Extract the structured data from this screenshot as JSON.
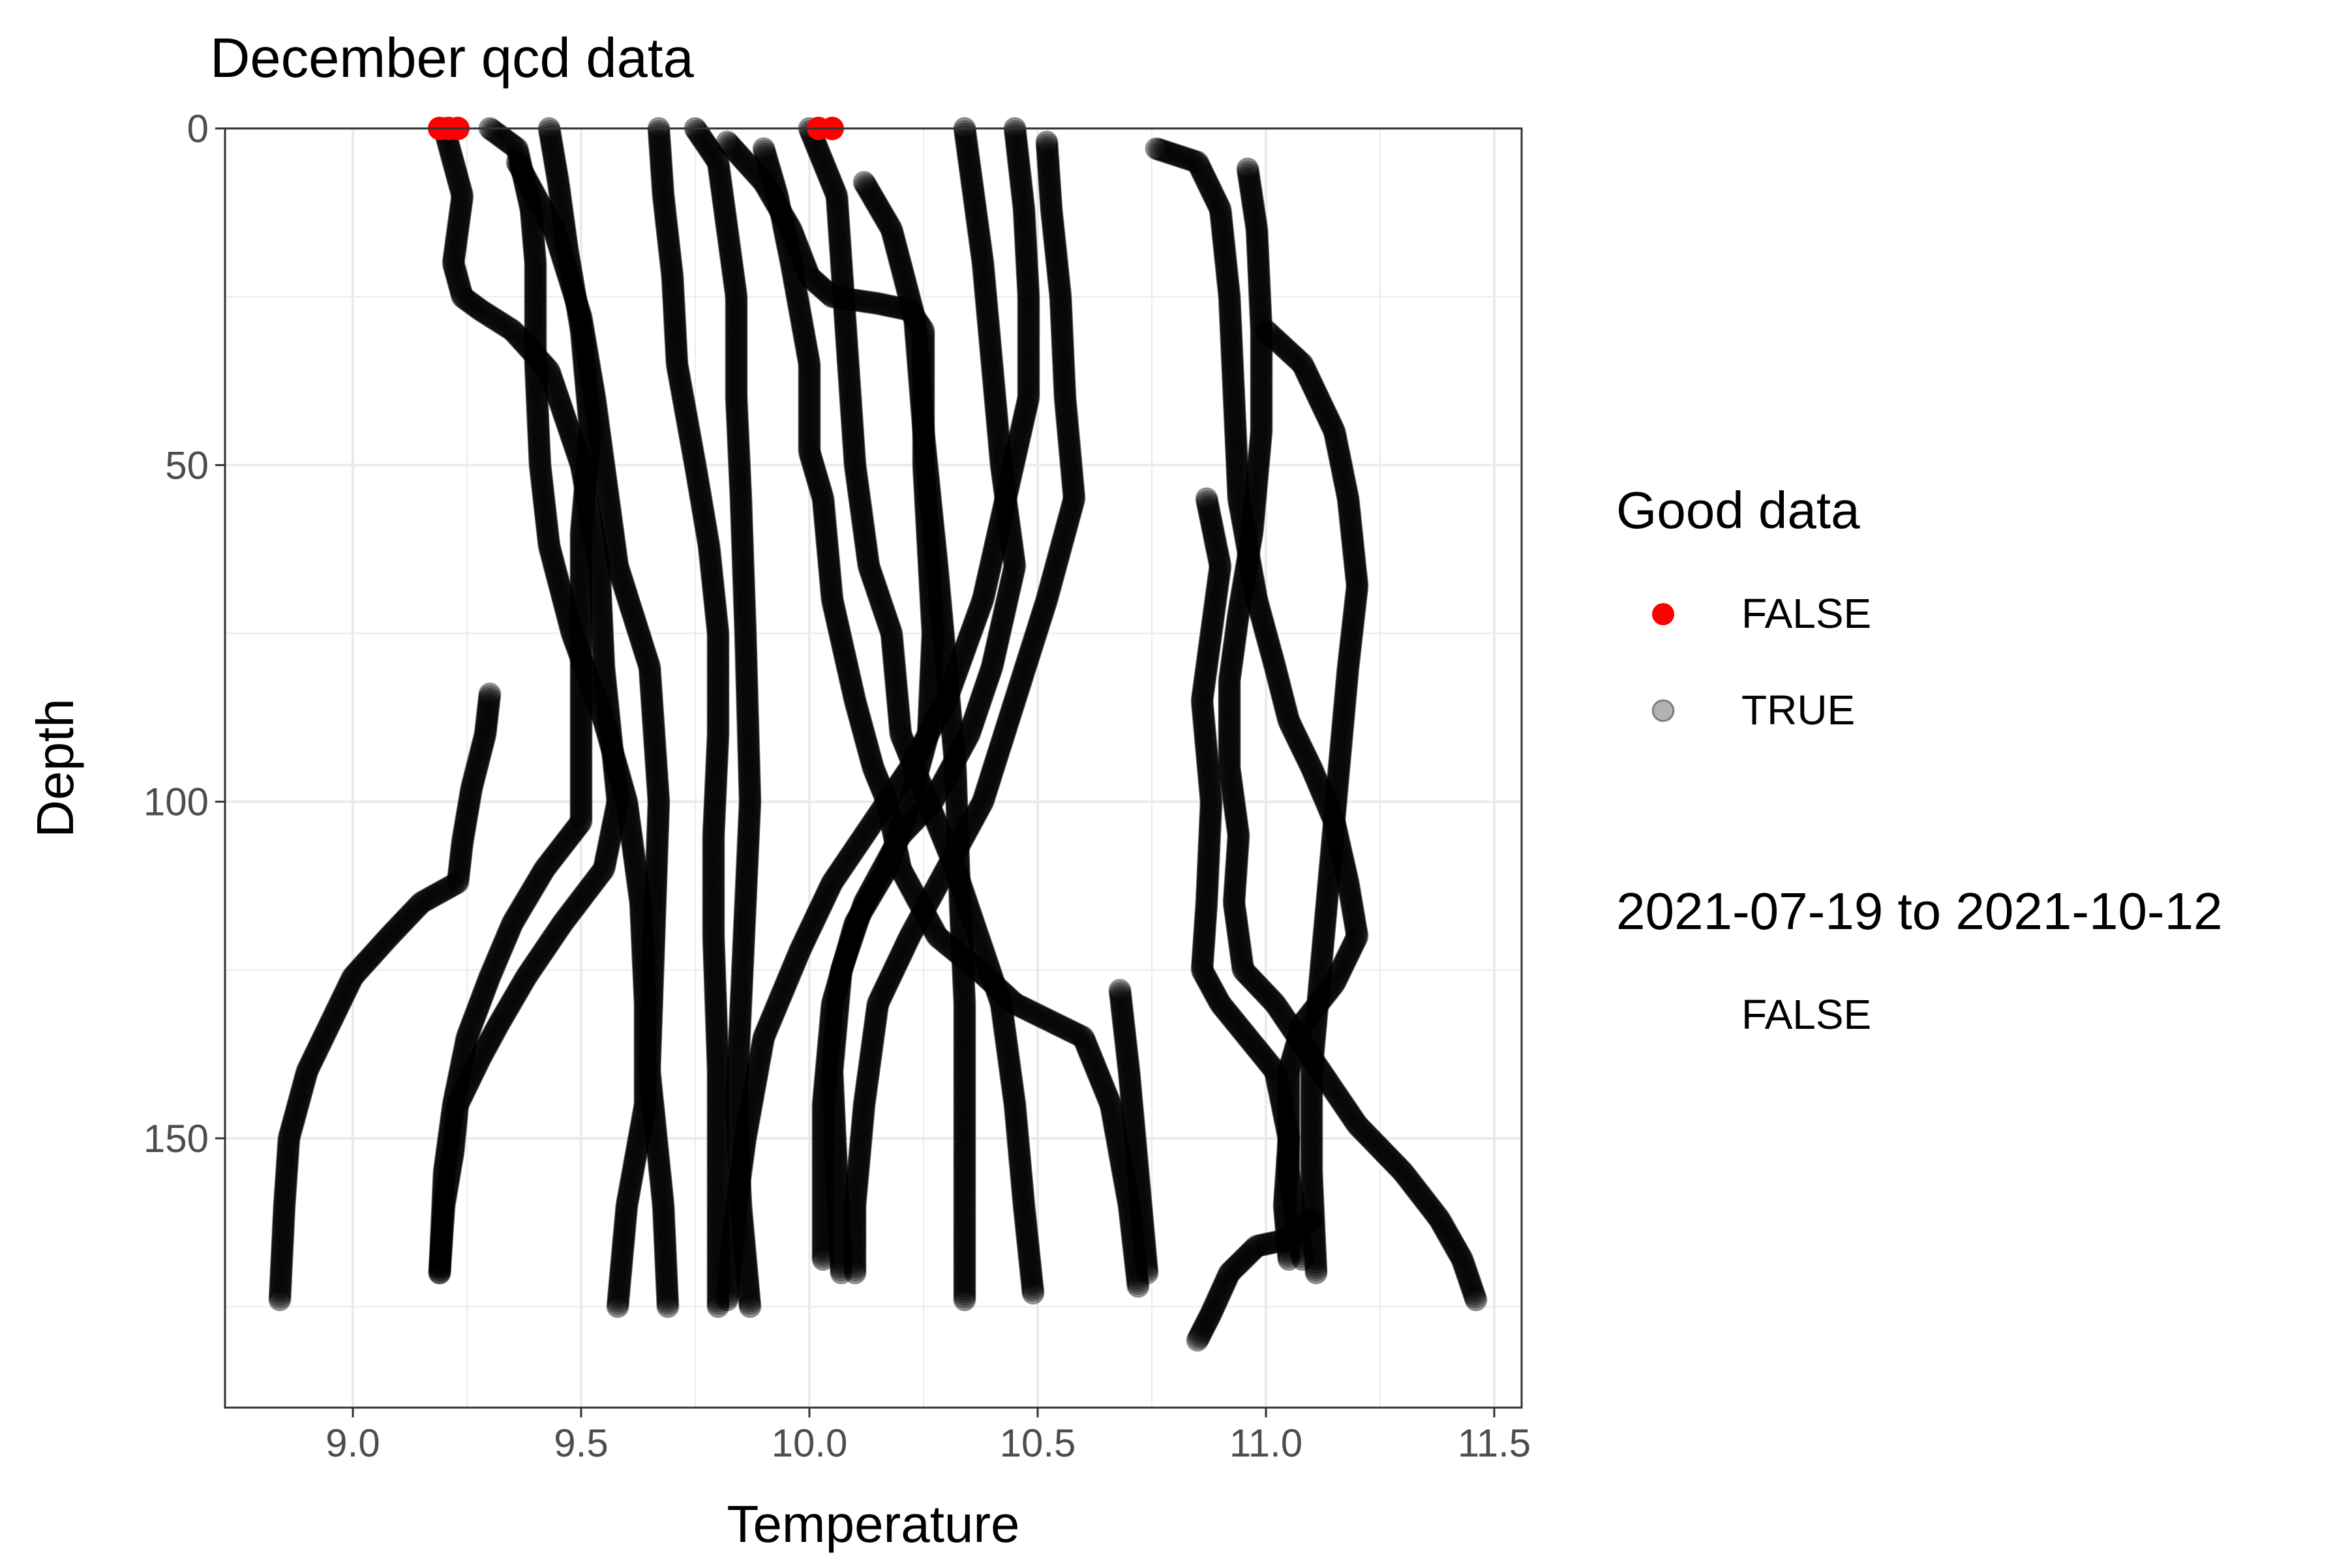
{
  "colors": {
    "good": "#000000",
    "bad": "#ff0000",
    "grid": "#ebebeb",
    "panel_border": "#333333",
    "tick_text": "#4d4d4d",
    "text": "#000000"
  },
  "chart_data": {
    "type": "scatter",
    "title": "December qcd data",
    "xlabel": "Temperature",
    "ylabel": "Depth",
    "xlim": [
      8.72,
      11.56
    ],
    "ylim": [
      0,
      190
    ],
    "y_reversed": true,
    "x_ticks": [
      9.0,
      9.5,
      10.0,
      10.5,
      11.0,
      11.5
    ],
    "x_tick_labels": [
      "9.0",
      "9.5",
      "10.0",
      "10.5",
      "11.0",
      "11.5"
    ],
    "y_ticks": [
      0,
      50,
      100,
      150
    ],
    "y_tick_labels": [
      "0",
      "50",
      "100",
      "150"
    ],
    "grid": true,
    "legend_position": "right",
    "legend": {
      "title": "Good data",
      "entries": [
        {
          "label": "FALSE",
          "key": "bad"
        },
        {
          "label": "TRUE",
          "key": "good"
        }
      ],
      "second_title": "2021-07-19 to 2021-10-12",
      "second_entries": [
        {
          "label": "FALSE"
        }
      ]
    },
    "series": [
      {
        "good": true,
        "points": [
          [
            9.2,
            0
          ],
          [
            9.22,
            5
          ],
          [
            9.24,
            10
          ],
          [
            9.22,
            20
          ],
          [
            9.24,
            25
          ],
          [
            9.28,
            27
          ],
          [
            9.35,
            30
          ],
          [
            9.43,
            36
          ],
          [
            9.46,
            42
          ],
          [
            9.5,
            50
          ],
          [
            9.54,
            65
          ],
          [
            9.55,
            80
          ],
          [
            9.58,
            100
          ],
          [
            9.55,
            110
          ],
          [
            9.46,
            118
          ],
          [
            9.38,
            126
          ],
          [
            9.32,
            133
          ],
          [
            9.28,
            138
          ],
          [
            9.23,
            145
          ],
          [
            9.22,
            152
          ],
          [
            9.2,
            160
          ],
          [
            9.19,
            170
          ]
        ]
      },
      {
        "good": true,
        "points": [
          [
            9.3,
            84
          ],
          [
            9.29,
            90
          ],
          [
            9.26,
            98
          ],
          [
            9.24,
            106
          ],
          [
            9.23,
            112
          ],
          [
            9.15,
            115
          ],
          [
            9.08,
            120
          ],
          [
            9.0,
            126
          ],
          [
            8.95,
            133
          ],
          [
            8.9,
            140
          ],
          [
            8.86,
            150
          ],
          [
            8.85,
            160
          ],
          [
            8.84,
            174
          ]
        ]
      },
      {
        "good": true,
        "points": [
          [
            9.3,
            0
          ],
          [
            9.36,
            3
          ],
          [
            9.39,
            12
          ],
          [
            9.4,
            20
          ],
          [
            9.4,
            35
          ],
          [
            9.41,
            50
          ],
          [
            9.43,
            62
          ],
          [
            9.48,
            75
          ],
          [
            9.55,
            88
          ],
          [
            9.6,
            100
          ],
          [
            9.63,
            115
          ],
          [
            9.64,
            130
          ],
          [
            9.64,
            145
          ],
          [
            9.6,
            160
          ],
          [
            9.58,
            175
          ]
        ]
      },
      {
        "good": true,
        "points": [
          [
            9.36,
            5
          ],
          [
            9.44,
            15
          ],
          [
            9.5,
            28
          ],
          [
            9.53,
            40
          ],
          [
            9.55,
            50
          ],
          [
            9.58,
            65
          ],
          [
            9.65,
            80
          ],
          [
            9.67,
            100
          ],
          [
            9.66,
            120
          ],
          [
            9.65,
            140
          ],
          [
            9.68,
            160
          ],
          [
            9.69,
            175
          ]
        ]
      },
      {
        "good": true,
        "points": [
          [
            9.43,
            0
          ],
          [
            9.45,
            8
          ],
          [
            9.47,
            18
          ],
          [
            9.5,
            30
          ],
          [
            9.52,
            45
          ],
          [
            9.5,
            60
          ],
          [
            9.5,
            75
          ],
          [
            9.5,
            90
          ],
          [
            9.5,
            103
          ],
          [
            9.42,
            110
          ],
          [
            9.35,
            118
          ],
          [
            9.3,
            126
          ],
          [
            9.25,
            135
          ],
          [
            9.22,
            145
          ],
          [
            9.2,
            155
          ],
          [
            9.19,
            170
          ]
        ]
      },
      {
        "good": true,
        "points": [
          [
            9.67,
            0
          ],
          [
            9.68,
            10
          ],
          [
            9.7,
            22
          ],
          [
            9.71,
            35
          ],
          [
            9.75,
            50
          ],
          [
            9.78,
            62
          ],
          [
            9.8,
            75
          ],
          [
            9.8,
            90
          ],
          [
            9.79,
            105
          ],
          [
            9.79,
            120
          ],
          [
            9.8,
            140
          ],
          [
            9.8,
            160
          ],
          [
            9.8,
            175
          ]
        ]
      },
      {
        "good": true,
        "points": [
          [
            9.75,
            0
          ],
          [
            9.8,
            5
          ],
          [
            9.82,
            15
          ],
          [
            9.84,
            25
          ],
          [
            9.84,
            40
          ],
          [
            9.85,
            55
          ],
          [
            9.86,
            75
          ],
          [
            9.87,
            100
          ],
          [
            9.86,
            115
          ],
          [
            9.85,
            130
          ],
          [
            9.84,
            145
          ],
          [
            9.85,
            160
          ],
          [
            9.87,
            175
          ]
        ]
      },
      {
        "good": true,
        "points": [
          [
            9.82,
            2
          ],
          [
            9.9,
            8
          ],
          [
            9.96,
            15
          ],
          [
            10.0,
            22
          ],
          [
            10.05,
            25
          ],
          [
            10.15,
            26
          ],
          [
            10.22,
            27
          ],
          [
            10.25,
            30
          ],
          [
            10.25,
            50
          ],
          [
            10.27,
            75
          ],
          [
            10.26,
            90
          ],
          [
            10.22,
            100
          ],
          [
            10.17,
            110
          ],
          [
            10.1,
            118
          ],
          [
            10.05,
            130
          ],
          [
            10.03,
            145
          ],
          [
            10.03,
            160
          ],
          [
            10.03,
            168
          ]
        ]
      },
      {
        "good": true,
        "points": [
          [
            9.9,
            3
          ],
          [
            9.93,
            10
          ],
          [
            9.96,
            20
          ],
          [
            10.0,
            35
          ],
          [
            10.0,
            48
          ],
          [
            10.03,
            55
          ],
          [
            10.05,
            70
          ],
          [
            10.1,
            85
          ],
          [
            10.14,
            95
          ],
          [
            10.17,
            100
          ],
          [
            10.2,
            110
          ],
          [
            10.28,
            120
          ],
          [
            10.37,
            125
          ],
          [
            10.45,
            130
          ],
          [
            10.6,
            135
          ],
          [
            10.66,
            145
          ],
          [
            10.7,
            160
          ],
          [
            10.72,
            172
          ]
        ]
      },
      {
        "good": true,
        "points": [
          [
            10.0,
            0
          ],
          [
            10.06,
            10
          ],
          [
            10.08,
            30
          ],
          [
            10.1,
            50
          ],
          [
            10.13,
            65
          ],
          [
            10.18,
            75
          ],
          [
            10.2,
            90
          ],
          [
            10.26,
            100
          ],
          [
            10.32,
            110
          ],
          [
            10.37,
            120
          ],
          [
            10.42,
            130
          ],
          [
            10.45,
            145
          ],
          [
            10.47,
            160
          ],
          [
            10.49,
            173
          ]
        ]
      },
      {
        "good": true,
        "points": [
          [
            10.12,
            8
          ],
          [
            10.18,
            15
          ],
          [
            10.23,
            28
          ],
          [
            10.25,
            45
          ],
          [
            10.28,
            65
          ],
          [
            10.3,
            80
          ],
          [
            10.32,
            95
          ],
          [
            10.33,
            115
          ],
          [
            10.34,
            130
          ],
          [
            10.34,
            150
          ],
          [
            10.34,
            174
          ]
        ]
      },
      {
        "good": true,
        "points": [
          [
            10.34,
            0
          ],
          [
            10.36,
            10
          ],
          [
            10.38,
            20
          ],
          [
            10.4,
            35
          ],
          [
            10.42,
            50
          ],
          [
            10.45,
            65
          ],
          [
            10.4,
            80
          ],
          [
            10.35,
            90
          ],
          [
            10.27,
            100
          ],
          [
            10.2,
            105
          ],
          [
            10.12,
            115
          ],
          [
            10.07,
            125
          ],
          [
            10.05,
            140
          ],
          [
            10.06,
            155
          ],
          [
            10.07,
            170
          ]
        ]
      },
      {
        "good": true,
        "points": [
          [
            10.45,
            0
          ],
          [
            10.47,
            12
          ],
          [
            10.48,
            25
          ],
          [
            10.48,
            40
          ],
          [
            10.43,
            55
          ],
          [
            10.38,
            70
          ],
          [
            10.3,
            85
          ],
          [
            10.22,
            95
          ],
          [
            10.14,
            103
          ],
          [
            10.05,
            112
          ],
          [
            9.98,
            122
          ],
          [
            9.9,
            135
          ],
          [
            9.86,
            150
          ],
          [
            9.84,
            160
          ],
          [
            9.82,
            174
          ]
        ]
      },
      {
        "good": true,
        "points": [
          [
            10.52,
            2
          ],
          [
            10.53,
            12
          ],
          [
            10.55,
            25
          ],
          [
            10.56,
            40
          ],
          [
            10.58,
            55
          ],
          [
            10.52,
            70
          ],
          [
            10.45,
            85
          ],
          [
            10.38,
            100
          ],
          [
            10.3,
            110
          ],
          [
            10.22,
            120
          ],
          [
            10.15,
            130
          ],
          [
            10.12,
            145
          ],
          [
            10.1,
            160
          ],
          [
            10.1,
            170
          ]
        ]
      },
      {
        "good": true,
        "points": [
          [
            10.76,
            3
          ],
          [
            10.85,
            5
          ],
          [
            10.9,
            12
          ],
          [
            10.92,
            25
          ],
          [
            10.93,
            40
          ],
          [
            10.94,
            55
          ],
          [
            10.98,
            70
          ],
          [
            11.02,
            80
          ],
          [
            11.05,
            88
          ],
          [
            11.1,
            95
          ],
          [
            11.15,
            103
          ],
          [
            11.18,
            112
          ],
          [
            11.2,
            120
          ],
          [
            11.15,
            127
          ],
          [
            11.08,
            133
          ],
          [
            11.05,
            140
          ],
          [
            11.05,
            155
          ],
          [
            11.08,
            168
          ]
        ]
      },
      {
        "good": true,
        "points": [
          [
            10.96,
            6
          ],
          [
            10.98,
            15
          ],
          [
            10.99,
            30
          ],
          [
            10.99,
            45
          ],
          [
            10.97,
            60
          ],
          [
            10.94,
            72
          ],
          [
            10.92,
            82
          ],
          [
            10.92,
            95
          ],
          [
            10.94,
            105
          ],
          [
            10.93,
            115
          ],
          [
            10.95,
            125
          ],
          [
            11.02,
            130
          ],
          [
            11.1,
            138
          ],
          [
            11.2,
            148
          ],
          [
            11.3,
            155
          ],
          [
            11.38,
            162
          ],
          [
            11.43,
            168
          ],
          [
            11.46,
            174
          ]
        ]
      },
      {
        "good": true,
        "points": [
          [
            11.0,
            30
          ],
          [
            11.08,
            35
          ],
          [
            11.15,
            45
          ],
          [
            11.18,
            55
          ],
          [
            11.2,
            68
          ],
          [
            11.18,
            80
          ],
          [
            11.16,
            95
          ],
          [
            11.14,
            110
          ],
          [
            11.12,
            125
          ],
          [
            11.1,
            140
          ],
          [
            11.1,
            155
          ],
          [
            11.11,
            170
          ]
        ]
      },
      {
        "good": true,
        "points": [
          [
            10.87,
            55
          ],
          [
            10.9,
            65
          ],
          [
            10.88,
            75
          ],
          [
            10.86,
            85
          ],
          [
            10.88,
            100
          ],
          [
            10.87,
            115
          ],
          [
            10.86,
            125
          ],
          [
            10.9,
            130
          ],
          [
            10.96,
            135
          ],
          [
            11.02,
            140
          ],
          [
            11.05,
            150
          ],
          [
            11.04,
            160
          ],
          [
            11.05,
            168
          ]
        ]
      },
      {
        "good": true,
        "points": [
          [
            10.68,
            128
          ],
          [
            10.7,
            140
          ],
          [
            10.72,
            155
          ],
          [
            10.74,
            170
          ]
        ]
      },
      {
        "good": true,
        "points": [
          [
            10.85,
            180
          ],
          [
            10.88,
            176
          ],
          [
            10.92,
            170
          ],
          [
            10.98,
            166
          ],
          [
            11.05,
            165
          ],
          [
            11.1,
            162
          ]
        ]
      },
      {
        "good": false,
        "points": [
          [
            9.19,
            0
          ],
          [
            9.21,
            0
          ],
          [
            9.23,
            0
          ],
          [
            10.02,
            0
          ],
          [
            10.05,
            0
          ]
        ]
      }
    ]
  }
}
